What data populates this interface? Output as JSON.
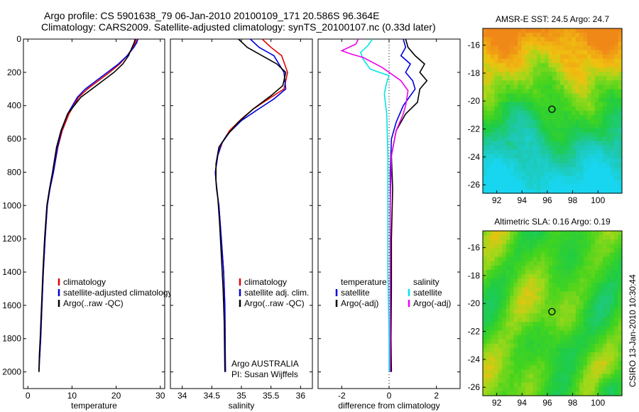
{
  "header": {
    "line1": "Argo profile: CS 5901638_79 06-Jan-2010 20100109_171 20.586S 96.364E",
    "line2": "Climatology: CARS2009. Satellite-adjusted climatology: synTS_20100107.nc (0.33d later)"
  },
  "side_label": "CSIRO 13-Jan-2010 10:30:44",
  "colors": {
    "red": "#e00000",
    "blue": "#0000dd",
    "black": "#000000",
    "cyan": "#00e5e5",
    "magenta": "#ee00ee",
    "argo_marker": "#000000"
  },
  "chart_data": [
    {
      "id": "temperature",
      "type": "line",
      "xlabel": "temperature",
      "xlim": [
        -1,
        31
      ],
      "ylim": [
        0,
        2100
      ],
      "y_reversed": true,
      "xticks": [
        0,
        10,
        20,
        30
      ],
      "yticks": [
        0,
        200,
        400,
        600,
        800,
        1000,
        1200,
        1400,
        1600,
        1800,
        2000
      ],
      "legend": {
        "position": "lower-center",
        "entries": [
          "climatology",
          "satellite-adjusted climatology",
          "Argo(..raw -QC)"
        ]
      },
      "series": [
        {
          "name": "climatology",
          "color": "red",
          "x": [
            24.6,
            24.4,
            23.8,
            22.5,
            20.8,
            18.5,
            16.0,
            13.5,
            11.5,
            9.3,
            7.8,
            6.8,
            5.8,
            5.0,
            4.4,
            3.9,
            3.5,
            3.2,
            2.9,
            2.7,
            2.5
          ],
          "y": [
            0,
            20,
            50,
            100,
            150,
            200,
            250,
            300,
            350,
            450,
            550,
            650,
            800,
            900,
            1000,
            1200,
            1400,
            1600,
            1800,
            1900,
            2000
          ]
        },
        {
          "name": "satellite-adjusted climatology",
          "color": "blue",
          "x": [
            24.9,
            24.7,
            24.0,
            22.5,
            20.5,
            18.0,
            15.5,
            13.0,
            11.2,
            9.0,
            7.6,
            6.7,
            5.8,
            5.0,
            4.4,
            3.9,
            3.5,
            3.2,
            2.9,
            2.7,
            2.5
          ],
          "y": [
            0,
            20,
            50,
            100,
            150,
            200,
            250,
            300,
            350,
            450,
            550,
            650,
            800,
            900,
            1000,
            1200,
            1400,
            1600,
            1800,
            1900,
            2000
          ]
        },
        {
          "name": "Argo(..raw -QC)",
          "color": "black",
          "x": [
            24.3,
            24.1,
            23.6,
            22.8,
            21.5,
            19.5,
            17.0,
            14.5,
            12.0,
            10.5,
            9.0,
            7.5,
            6.5,
            5.6,
            4.9,
            4.3,
            3.8,
            3.4,
            3.1,
            2.8,
            2.6,
            2.5
          ],
          "y": [
            0,
            20,
            50,
            100,
            150,
            200,
            250,
            300,
            350,
            400,
            450,
            550,
            650,
            800,
            900,
            1000,
            1200,
            1400,
            1600,
            1800,
            1900,
            2000
          ]
        }
      ]
    },
    {
      "id": "salinity",
      "type": "line",
      "xlabel": "salinity",
      "xlim": [
        33.8,
        36.2
      ],
      "ylim": [
        0,
        2100
      ],
      "y_reversed": true,
      "xticks": [
        34,
        34.5,
        35,
        35.5,
        36
      ],
      "legend": {
        "position": "lower-right",
        "entries": [
          "climatology",
          "satellite adj. clim.",
          "Argo(..raw -QC)"
        ]
      },
      "annotation": [
        "Argo AUSTRALIA",
        "PI: Susan Wijffels"
      ],
      "series": [
        {
          "name": "climatology",
          "color": "red",
          "x": [
            35.35,
            35.5,
            35.68,
            35.78,
            35.72,
            35.5,
            35.2,
            35.0,
            34.8,
            34.68,
            34.6,
            34.56,
            34.58,
            34.62,
            34.66,
            34.7,
            34.72,
            34.73
          ],
          "y": [
            0,
            50,
            100,
            200,
            300,
            350,
            420,
            480,
            550,
            620,
            700,
            800,
            900,
            1000,
            1200,
            1400,
            1600,
            2000
          ]
        },
        {
          "name": "satellite adj. clim.",
          "color": "blue",
          "x": [
            35.15,
            35.3,
            35.55,
            35.72,
            35.75,
            35.55,
            35.25,
            35.0,
            34.8,
            34.66,
            34.6,
            34.56,
            34.58,
            34.62,
            34.66,
            34.7,
            34.72,
            34.73
          ],
          "y": [
            0,
            50,
            100,
            200,
            300,
            360,
            430,
            490,
            560,
            630,
            700,
            800,
            900,
            1000,
            1200,
            1400,
            1600,
            2000
          ]
        },
        {
          "name": "Argo(..raw -QC)",
          "color": "black",
          "x": [
            34.95,
            35.1,
            35.35,
            35.6,
            35.75,
            35.7,
            35.5,
            35.2,
            34.95,
            34.75,
            34.62,
            34.57,
            34.57,
            34.6,
            34.63,
            34.66,
            34.69,
            34.71,
            34.72
          ],
          "y": [
            0,
            50,
            100,
            150,
            200,
            280,
            340,
            420,
            500,
            580,
            650,
            750,
            850,
            950,
            1100,
            1300,
            1500,
            1700,
            2000
          ]
        }
      ]
    },
    {
      "id": "difference",
      "type": "line",
      "xlabel": "difference from climatology",
      "xlim": [
        -3,
        3
      ],
      "ylim": [
        0,
        2100
      ],
      "y_reversed": true,
      "xticks": [
        -2,
        0,
        2
      ],
      "zero_line": true,
      "legend": {
        "position": "lower-center",
        "groups": [
          {
            "title": "temperature",
            "entries": [
              "satellite",
              "Argo(-adj)"
            ]
          },
          {
            "title": "salinity",
            "entries": [
              "satellite",
              "Argo(-adj)"
            ]
          }
        ]
      },
      "series": [
        {
          "name": "temperature satellite",
          "color": "blue",
          "x": [
            0.6,
            0.7,
            0.5,
            0.9,
            0.7,
            1.0,
            1.1,
            0.6,
            0.3,
            0.1,
            0.05,
            0.05,
            0.05,
            0.05,
            0.05,
            0.05
          ],
          "y": [
            0,
            50,
            100,
            150,
            200,
            250,
            300,
            400,
            500,
            600,
            800,
            1000,
            1200,
            1500,
            1800,
            2000
          ]
        },
        {
          "name": "temperature Argo(-adj)",
          "color": "black",
          "x": [
            0.7,
            0.8,
            1.1,
            1.5,
            1.3,
            1.6,
            1.3,
            1.2,
            0.7,
            0.3,
            0.1,
            0.15,
            0.1,
            0.1,
            0.08,
            0.1
          ],
          "y": [
            0,
            50,
            100,
            150,
            200,
            250,
            300,
            380,
            450,
            550,
            700,
            900,
            1200,
            1500,
            1800,
            2000
          ]
        },
        {
          "name": "salinity satellite",
          "color": "cyan",
          "x": [
            -0.7,
            -0.9,
            -1.2,
            -1.1,
            -0.8,
            0.0,
            -0.1,
            -0.2,
            -0.1,
            -0.05,
            -0.05,
            -0.05,
            0.0,
            0.0
          ],
          "y": [
            0,
            40,
            80,
            120,
            180,
            220,
            260,
            330,
            450,
            700,
            1000,
            1400,
            1800,
            2000
          ]
        },
        {
          "name": "salinity Argo(-adj)",
          "color": "magenta",
          "x": [
            -1.3,
            -1.4,
            -2.0,
            -1.6,
            -1.1,
            -0.3,
            0.5,
            0.8,
            0.7,
            0.6,
            0.3,
            0.1,
            0.05,
            0.05,
            0.05
          ],
          "y": [
            0,
            30,
            70,
            90,
            110,
            170,
            250,
            310,
            400,
            450,
            550,
            700,
            1000,
            1500,
            2000
          ]
        }
      ]
    },
    {
      "id": "sst_map",
      "type": "heatmap",
      "title": "AMSR-E SST: 24.5 Argo: 24.7",
      "xlim": [
        90.9,
        101.9
      ],
      "ylim": [
        -26.6,
        -14.8
      ],
      "xticks": [
        92,
        94,
        96,
        98,
        100
      ],
      "yticks": [
        -16,
        -18,
        -20,
        -22,
        -24,
        -26
      ],
      "argo_position": {
        "lon": 96.364,
        "lat": -20.586
      }
    },
    {
      "id": "sla_map",
      "type": "heatmap",
      "title": "Altimetric SLA: 0.16 Argo: 0.19",
      "xlim": [
        90.9,
        101.9
      ],
      "ylim": [
        -26.6,
        -14.8
      ],
      "xticks": [
        92,
        94,
        96,
        98,
        100
      ],
      "yticks": [
        -16,
        -18,
        -20,
        -22,
        -24,
        -26
      ],
      "argo_position": {
        "lon": 96.364,
        "lat": -20.586
      }
    }
  ]
}
